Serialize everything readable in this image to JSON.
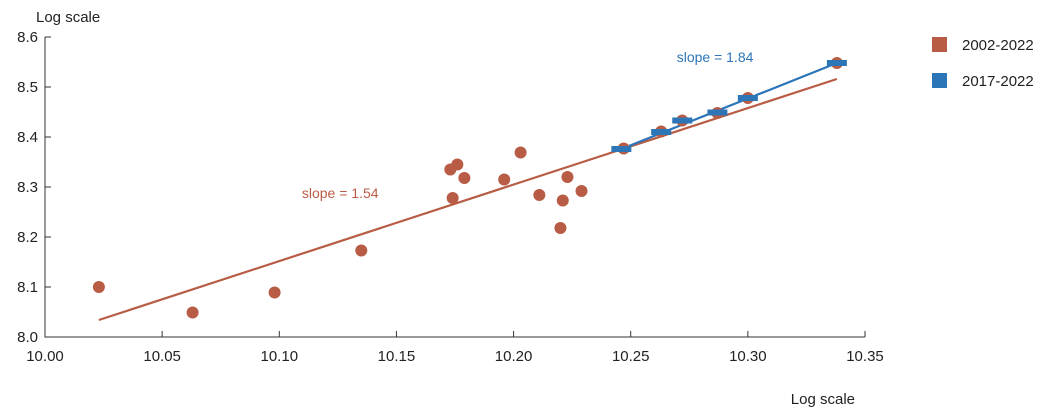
{
  "chart_data": {
    "type": "scatter",
    "title": "",
    "xlabel": "Log scale",
    "ylabel": "Log scale",
    "xlim": [
      10.0,
      10.35
    ],
    "ylim": [
      8.0,
      8.6
    ],
    "x_ticks": [
      "10.00",
      "10.05",
      "10.10",
      "10.15",
      "10.20",
      "10.25",
      "10.30",
      "10.35"
    ],
    "y_ticks": [
      "8.0",
      "8.1",
      "8.2",
      "8.3",
      "8.4",
      "8.5",
      "8.6"
    ],
    "grid": false,
    "legend_position": "right",
    "series": [
      {
        "name": "2002-2022",
        "color": "#B85C45",
        "marker": "circle",
        "points": [
          {
            "x": 10.023,
            "y": 8.1
          },
          {
            "x": 10.063,
            "y": 8.049
          },
          {
            "x": 10.098,
            "y": 8.089
          },
          {
            "x": 10.135,
            "y": 8.173
          },
          {
            "x": 10.173,
            "y": 8.335
          },
          {
            "x": 10.174,
            "y": 8.278
          },
          {
            "x": 10.176,
            "y": 8.345
          },
          {
            "x": 10.179,
            "y": 8.318
          },
          {
            "x": 10.196,
            "y": 8.315
          },
          {
            "x": 10.203,
            "y": 8.369
          },
          {
            "x": 10.211,
            "y": 8.284
          },
          {
            "x": 10.22,
            "y": 8.218
          },
          {
            "x": 10.221,
            "y": 8.273
          },
          {
            "x": 10.223,
            "y": 8.32
          },
          {
            "x": 10.229,
            "y": 8.292
          },
          {
            "x": 10.247,
            "y": 8.377
          },
          {
            "x": 10.263,
            "y": 8.411
          },
          {
            "x": 10.272,
            "y": 8.433
          },
          {
            "x": 10.287,
            "y": 8.448
          },
          {
            "x": 10.3,
            "y": 8.478
          },
          {
            "x": 10.338,
            "y": 8.548
          }
        ],
        "fit_line": {
          "x": [
            10.023,
            10.338
          ],
          "y": [
            8.034,
            8.516
          ]
        },
        "annotation": "slope = 1.54",
        "annotation_at": {
          "x": 10.126,
          "y": 8.278
        }
      },
      {
        "name": "2017-2022",
        "color": "#2C75B6",
        "marker": "dash",
        "points": [
          {
            "x": 10.246,
            "y": 8.376
          },
          {
            "x": 10.263,
            "y": 8.41
          },
          {
            "x": 10.272,
            "y": 8.433
          },
          {
            "x": 10.287,
            "y": 8.449
          },
          {
            "x": 10.3,
            "y": 8.478
          },
          {
            "x": 10.338,
            "y": 8.548
          }
        ],
        "fit_line": {
          "x": [
            10.246,
            10.338
          ],
          "y": [
            8.376,
            8.548
          ]
        },
        "annotation": "slope = 1.84",
        "annotation_at": {
          "x": 10.286,
          "y": 8.55
        }
      }
    ]
  }
}
